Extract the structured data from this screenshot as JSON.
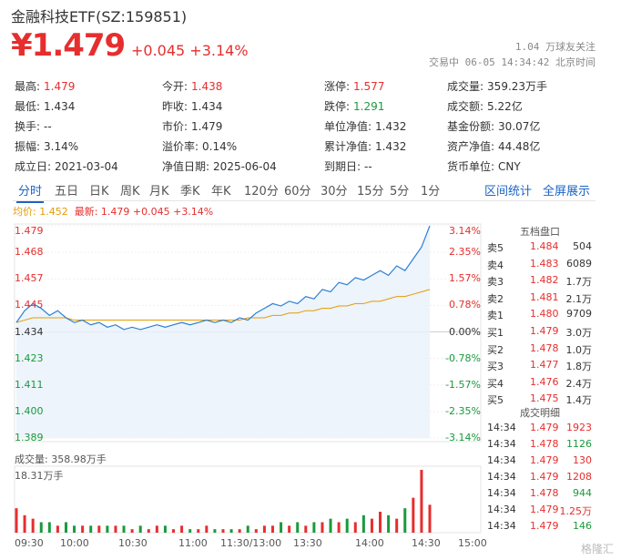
{
  "header": {
    "title": "金融科技ETF(SZ:159851)",
    "price": "¥1.479",
    "change": "+0.045 +3.14%",
    "follow": "1.04 万球友关注",
    "trade_info": "交易中 06-05 14:34:42 北京时间"
  },
  "quote": [
    {
      "label": "最高:",
      "value": "1.479",
      "color": "red"
    },
    {
      "label": "今开:",
      "value": "1.438",
      "color": "red"
    },
    {
      "label": "涨停:",
      "value": "1.577",
      "color": "red"
    },
    {
      "label": "成交量:",
      "value": "359.23万手",
      "color": "plain"
    },
    {
      "label": "最低:",
      "value": "1.434",
      "color": "plain"
    },
    {
      "label": "昨收:",
      "value": "1.434",
      "color": "plain"
    },
    {
      "label": "跌停:",
      "value": "1.291",
      "color": "green"
    },
    {
      "label": "成交额:",
      "value": "5.22亿",
      "color": "plain"
    },
    {
      "label": "换手:",
      "value": "--",
      "color": "plain"
    },
    {
      "label": "市价:",
      "value": "1.479",
      "color": "plain"
    },
    {
      "label": "单位净值:",
      "value": "1.432",
      "color": "plain"
    },
    {
      "label": "基金份额:",
      "value": "30.07亿",
      "color": "plain"
    },
    {
      "label": "振幅:",
      "value": "3.14%",
      "color": "plain"
    },
    {
      "label": "溢价率:",
      "value": "0.14%",
      "color": "plain"
    },
    {
      "label": "累计净值:",
      "value": "1.432",
      "color": "plain"
    },
    {
      "label": "资产净值:",
      "value": "44.48亿",
      "color": "plain"
    },
    {
      "label": "成立日:",
      "value": "2021-03-04",
      "color": "plain"
    },
    {
      "label": "净值日期:",
      "value": "2025-06-04",
      "color": "plain"
    },
    {
      "label": "到期日:",
      "value": "--",
      "color": "plain"
    },
    {
      "label": "货币单位:",
      "value": "CNY",
      "color": "plain"
    }
  ],
  "tabs": [
    "分时",
    "五日",
    "日K",
    "周K",
    "月K",
    "季K",
    "年K",
    "120分",
    "60分",
    "30分",
    "15分",
    "5分",
    "1分"
  ],
  "tab_links": [
    "区间统计",
    "全屏展示"
  ],
  "legend": {
    "avg": "均价: 1.452",
    "latest": "最新: 1.479 +0.045 +3.14%"
  },
  "chart_data": {
    "type": "line",
    "y_ticks_left": [
      "1.479",
      "1.468",
      "1.457",
      "1.445",
      "1.434",
      "1.423",
      "1.411",
      "1.400",
      "1.389"
    ],
    "y_ticks_right": [
      "3.14%",
      "2.35%",
      "1.57%",
      "0.78%",
      "0.00%",
      "-0.78%",
      "-1.57%",
      "-2.35%",
      "-3.14%"
    ],
    "ylim": [
      1.389,
      1.479
    ],
    "x_ticks": [
      "09:30",
      "10:00",
      "10:30",
      "11:00",
      "11:30/13:00",
      "13:30",
      "14:00",
      "14:30",
      "15:00"
    ],
    "series": [
      {
        "values": [
          1.438,
          1.443,
          1.446,
          1.444,
          1.441,
          1.443,
          1.44,
          1.438,
          1.439,
          1.437,
          1.438,
          1.436,
          1.437,
          1.435,
          1.436,
          1.435,
          1.436,
          1.437,
          1.436,
          1.437,
          1.438,
          1.437,
          1.438,
          1.439,
          1.438,
          1.439,
          1.438,
          1.44,
          1.439,
          1.442,
          1.444,
          1.446,
          1.445,
          1.447,
          1.446,
          1.449,
          1.448,
          1.452,
          1.451,
          1.455,
          1.454,
          1.457,
          1.456,
          1.458,
          1.46,
          1.458,
          1.462,
          1.46,
          1.465,
          1.47,
          1.479
        ]
      },
      {
        "values": [
          1.438,
          1.439,
          1.44,
          1.44,
          1.44,
          1.44,
          1.44,
          1.439,
          1.439,
          1.439,
          1.439,
          1.439,
          1.439,
          1.439,
          1.439,
          1.439,
          1.439,
          1.439,
          1.439,
          1.439,
          1.439,
          1.439,
          1.439,
          1.439,
          1.439,
          1.439,
          1.439,
          1.439,
          1.44,
          1.44,
          1.44,
          1.441,
          1.441,
          1.442,
          1.442,
          1.443,
          1.443,
          1.444,
          1.444,
          1.445,
          1.445,
          1.446,
          1.446,
          1.447,
          1.447,
          1.448,
          1.449,
          1.449,
          1.45,
          1.451,
          1.452
        ]
      }
    ],
    "volume": {
      "label": "成交量: 358.98万手",
      "max_label": "18.31万手",
      "values": [
        7,
        5,
        4,
        3,
        3,
        2,
        3,
        2,
        2,
        2,
        2,
        2,
        2,
        2,
        1,
        2,
        1,
        2,
        2,
        1,
        2,
        1,
        1,
        2,
        1,
        1,
        1,
        1,
        2,
        1,
        2,
        2,
        3,
        2,
        3,
        2,
        3,
        3,
        4,
        3,
        4,
        3,
        5,
        4,
        6,
        5,
        4,
        7,
        10,
        18,
        8
      ]
    }
  },
  "order_book": {
    "title": "五档盘口",
    "sell": [
      {
        "label": "卖5",
        "price": "1.484",
        "vol": "504"
      },
      {
        "label": "卖4",
        "price": "1.483",
        "vol": "6089"
      },
      {
        "label": "卖3",
        "price": "1.482",
        "vol": "1.7万"
      },
      {
        "label": "卖2",
        "price": "1.481",
        "vol": "2.1万"
      },
      {
        "label": "卖1",
        "price": "1.480",
        "vol": "9709"
      }
    ],
    "buy": [
      {
        "label": "买1",
        "price": "1.479",
        "vol": "3.0万"
      },
      {
        "label": "买2",
        "price": "1.478",
        "vol": "1.0万"
      },
      {
        "label": "买3",
        "price": "1.477",
        "vol": "1.8万"
      },
      {
        "label": "买4",
        "price": "1.476",
        "vol": "2.4万"
      },
      {
        "label": "买5",
        "price": "1.475",
        "vol": "1.4万"
      }
    ]
  },
  "deals": {
    "title": "成交明细",
    "rows": [
      {
        "time": "14:34",
        "price": "1.479",
        "vol": "1923",
        "color": "red"
      },
      {
        "time": "14:34",
        "price": "1.478",
        "vol": "1126",
        "color": "green"
      },
      {
        "time": "14:34",
        "price": "1.479",
        "vol": "130",
        "color": "red"
      },
      {
        "time": "14:34",
        "price": "1.479",
        "vol": "1208",
        "color": "red"
      },
      {
        "time": "14:34",
        "price": "1.478",
        "vol": "944",
        "color": "green"
      },
      {
        "time": "14:34",
        "price": "1.479",
        "vol": "1.25万",
        "color": "red"
      },
      {
        "time": "14:34",
        "price": "1.479",
        "vol": "146",
        "color": "green"
      }
    ]
  },
  "watermark": "格隆汇"
}
